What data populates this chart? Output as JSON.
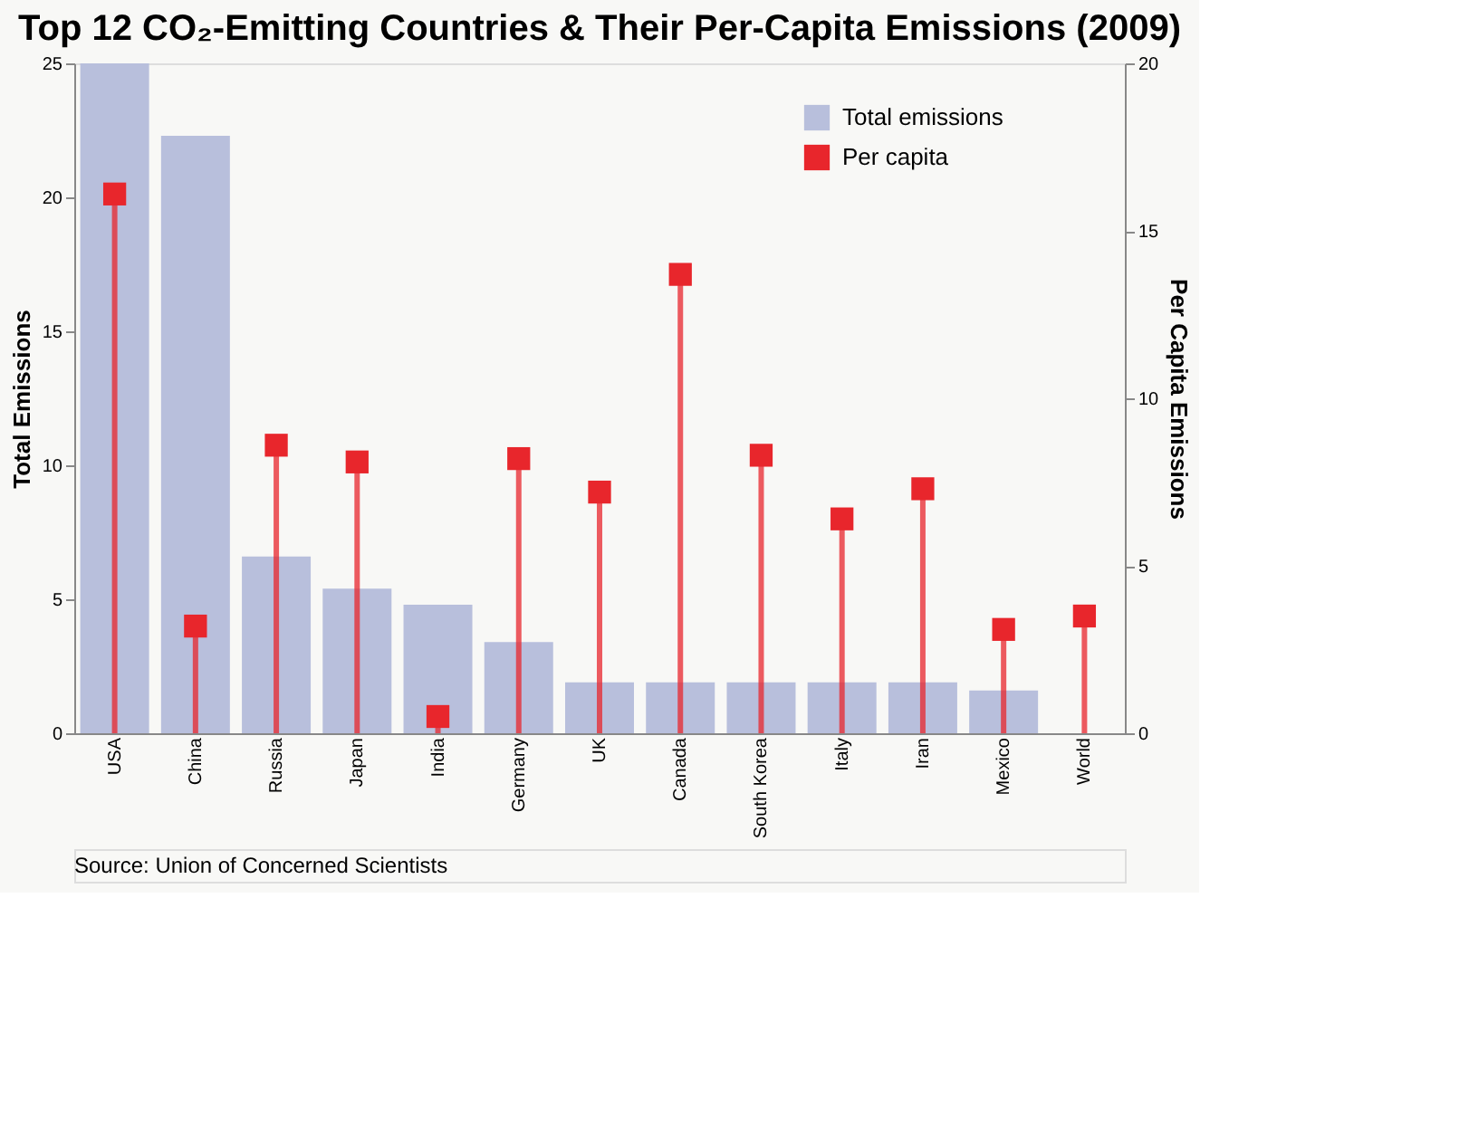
{
  "chart_data": {
    "type": "bar",
    "title": "Top 12 CO₂-Emitting Countries & Their Per-Capita Emissions (2009)",
    "ylabel": "Total Emissions",
    "y2label": "Per Capita Emissions",
    "categories": [
      "USA",
      "China",
      "Russia",
      "Japan",
      "India",
      "Germany",
      "UK",
      "Canada",
      "South Korea",
      "Italy",
      "Iran",
      "Mexico",
      "World"
    ],
    "series": [
      {
        "name": "Total emissions",
        "color": "#b8bfdc",
        "values": [
          25,
          22.3,
          6.6,
          5.4,
          4.8,
          3.4,
          1.9,
          1.9,
          1.9,
          1.9,
          1.9,
          1.6,
          null
        ]
      },
      {
        "name": "Per capita",
        "type": "lollipop",
        "axis": "y2",
        "color": "#e8262c",
        "values": [
          16.1,
          3.2,
          8.6,
          8.1,
          0.5,
          8.2,
          7.2,
          13.7,
          8.3,
          6.4,
          7.3,
          3.1,
          3.5
        ]
      }
    ],
    "ylim": [
      0,
      25
    ],
    "yticks": [
      0,
      5,
      10,
      15,
      20,
      25
    ],
    "y2lim": [
      0,
      20
    ],
    "y2ticks": [
      0,
      5,
      10,
      15,
      20
    ],
    "legend": "top right",
    "marker": "square",
    "annotations": [
      "Source: Union of Concerned Scientists"
    ]
  }
}
